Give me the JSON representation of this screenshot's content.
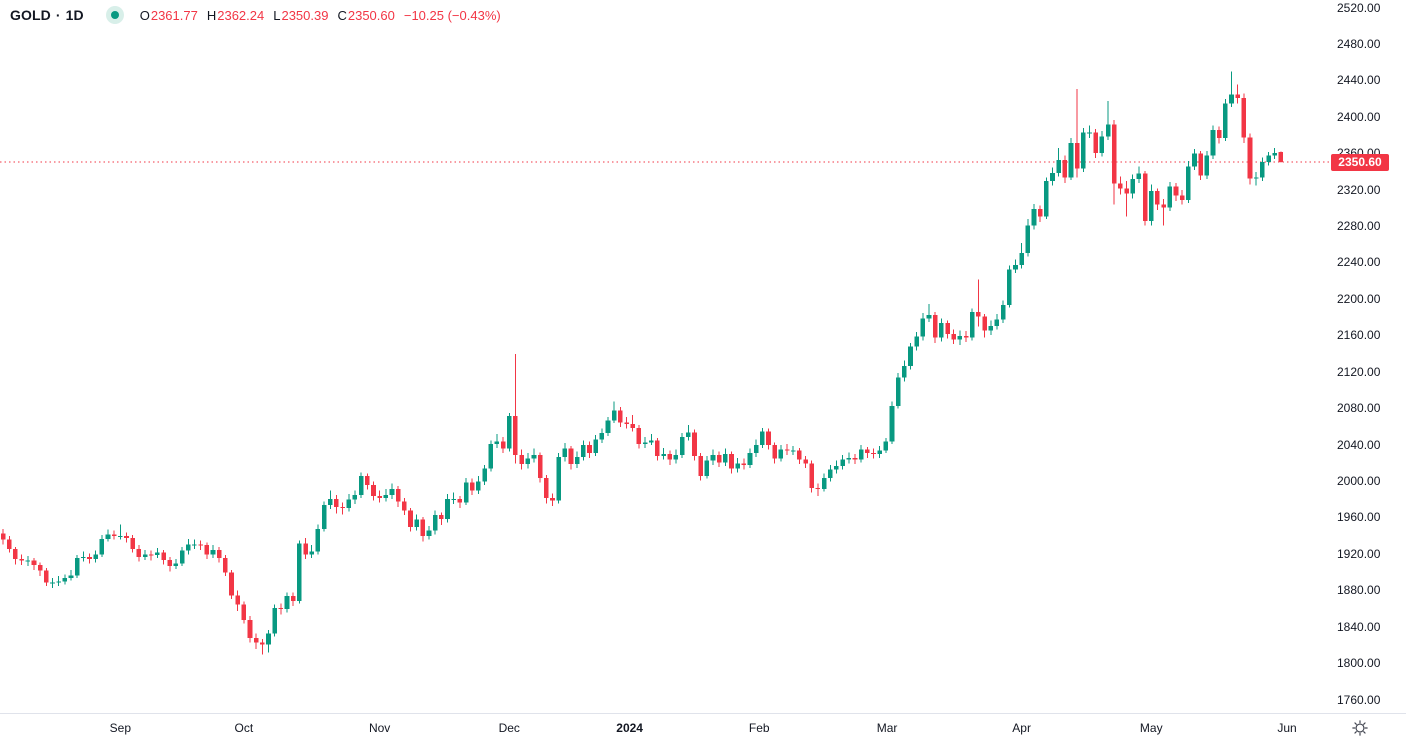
{
  "legend": {
    "symbol": "GOLD",
    "separator": "·",
    "interval": "1D",
    "ohlc": {
      "o_label": "O",
      "o": "2361.77",
      "h_label": "H",
      "h": "2362.24",
      "l_label": "L",
      "l": "2350.39",
      "c_label": "C",
      "c": "2350.60"
    },
    "change": "−10.25 (−0.43%)"
  },
  "price_label": "2350.60",
  "colors": {
    "up": "#089981",
    "down": "#f23645",
    "accent_red": "#f23645",
    "text": "#131722",
    "axis_line": "#e0e3eb",
    "status_dot": "#089981",
    "status_ring": "#d8efe9"
  },
  "chart_data": {
    "type": "candlestick",
    "title": "GOLD · 1D",
    "symbol": "GOLD",
    "interval": "1D",
    "legend_position": "top-left",
    "grid": false,
    "last_price": 2350.6,
    "last_candle": {
      "open": 2361.77,
      "high": 2362.24,
      "low": 2350.39,
      "close": 2350.6,
      "change": -10.25,
      "change_pct": -0.43
    },
    "price_axis": {
      "min": 1760,
      "max": 2520,
      "tick_step": 40,
      "side": "right",
      "ticks": [
        2520,
        2480,
        2440,
        2400,
        2360,
        2320,
        2280,
        2240,
        2200,
        2160,
        2120,
        2080,
        2040,
        2000,
        1960,
        1920,
        1880,
        1840,
        1800,
        1760
      ]
    },
    "time_ticks": [
      {
        "label": "Sep",
        "index": 19
      },
      {
        "label": "Oct",
        "index": 39
      },
      {
        "label": "Nov",
        "index": 61
      },
      {
        "label": "Dec",
        "index": 82
      },
      {
        "label": "2024",
        "index": 101.5,
        "bold": true
      },
      {
        "label": "Feb",
        "index": 122.5
      },
      {
        "label": "Mar",
        "index": 143.2
      },
      {
        "label": "Apr",
        "index": 165
      },
      {
        "label": "May",
        "index": 186
      },
      {
        "label": "Jun",
        "index": 208
      }
    ],
    "candles_format": [
      "open",
      "high",
      "low",
      "close"
    ],
    "candles": [
      [
        1943,
        1948,
        1931,
        1936
      ],
      [
        1936,
        1940,
        1922,
        1926
      ],
      [
        1926,
        1928,
        1909,
        1915
      ],
      [
        1915,
        1920,
        1908,
        1913
      ],
      [
        1913,
        1918,
        1907,
        1913
      ],
      [
        1913,
        1916,
        1903,
        1908
      ],
      [
        1908,
        1911,
        1896,
        1902
      ],
      [
        1902,
        1905,
        1885,
        1889
      ],
      [
        1889,
        1894,
        1883,
        1889
      ],
      [
        1889,
        1896,
        1885,
        1890
      ],
      [
        1890,
        1898,
        1887,
        1894
      ],
      [
        1894,
        1903,
        1891,
        1897
      ],
      [
        1897,
        1919,
        1894,
        1916
      ],
      [
        1916,
        1923,
        1912,
        1917
      ],
      [
        1917,
        1921,
        1910,
        1915
      ],
      [
        1915,
        1924,
        1911,
        1920
      ],
      [
        1920,
        1941,
        1917,
        1937
      ],
      [
        1937,
        1947,
        1934,
        1942
      ],
      [
        1942,
        1946,
        1936,
        1940
      ],
      [
        1940,
        1953,
        1936,
        1940
      ],
      [
        1940,
        1944,
        1933,
        1938
      ],
      [
        1938,
        1941,
        1922,
        1926
      ],
      [
        1926,
        1930,
        1912,
        1917
      ],
      [
        1917,
        1925,
        1914,
        1920
      ],
      [
        1920,
        1924,
        1913,
        1919
      ],
      [
        1919,
        1927,
        1916,
        1922
      ],
      [
        1922,
        1925,
        1909,
        1914
      ],
      [
        1914,
        1917,
        1901,
        1907
      ],
      [
        1907,
        1915,
        1904,
        1910
      ],
      [
        1910,
        1928,
        1907,
        1924
      ],
      [
        1924,
        1937,
        1920,
        1931
      ],
      [
        1931,
        1936,
        1926,
        1931
      ],
      [
        1931,
        1935,
        1925,
        1930
      ],
      [
        1930,
        1933,
        1915,
        1920
      ],
      [
        1920,
        1930,
        1916,
        1925
      ],
      [
        1925,
        1928,
        1911,
        1916
      ],
      [
        1916,
        1919,
        1896,
        1900
      ],
      [
        1900,
        1903,
        1871,
        1875
      ],
      [
        1875,
        1880,
        1858,
        1865
      ],
      [
        1865,
        1868,
        1844,
        1848
      ],
      [
        1848,
        1852,
        1823,
        1828
      ],
      [
        1828,
        1833,
        1816,
        1823
      ],
      [
        1823,
        1827,
        1810,
        1821
      ],
      [
        1821,
        1837,
        1812,
        1833
      ],
      [
        1833,
        1865,
        1830,
        1861
      ],
      [
        1861,
        1866,
        1854,
        1860
      ],
      [
        1860,
        1878,
        1856,
        1874
      ],
      [
        1874,
        1878,
        1863,
        1869
      ],
      [
        1869,
        1935,
        1866,
        1932
      ],
      [
        1932,
        1938,
        1915,
        1920
      ],
      [
        1920,
        1930,
        1916,
        1923
      ],
      [
        1923,
        1953,
        1920,
        1948
      ],
      [
        1948,
        1978,
        1945,
        1974
      ],
      [
        1974,
        1990,
        1970,
        1981
      ],
      [
        1981,
        1985,
        1965,
        1972
      ],
      [
        1972,
        1977,
        1964,
        1971
      ],
      [
        1971,
        1986,
        1967,
        1980
      ],
      [
        1980,
        1990,
        1975,
        1985
      ],
      [
        1985,
        2010,
        1982,
        2006
      ],
      [
        2006,
        2009,
        1991,
        1996
      ],
      [
        1996,
        2000,
        1979,
        1984
      ],
      [
        1984,
        1990,
        1977,
        1982
      ],
      [
        1982,
        1992,
        1978,
        1985
      ],
      [
        1985,
        1998,
        1981,
        1992
      ],
      [
        1992,
        1995,
        1972,
        1978
      ],
      [
        1978,
        1982,
        1963,
        1968
      ],
      [
        1968,
        1971,
        1945,
        1950
      ],
      [
        1950,
        1964,
        1946,
        1958
      ],
      [
        1958,
        1961,
        1934,
        1940
      ],
      [
        1940,
        1951,
        1936,
        1946
      ],
      [
        1946,
        1968,
        1942,
        1963
      ],
      [
        1963,
        1966,
        1952,
        1959
      ],
      [
        1959,
        1986,
        1955,
        1981
      ],
      [
        1981,
        1988,
        1975,
        1981
      ],
      [
        1981,
        1984,
        1971,
        1977
      ],
      [
        1977,
        2004,
        1974,
        1999
      ],
      [
        1999,
        2003,
        1985,
        1990
      ],
      [
        1990,
        2006,
        1986,
        2000
      ],
      [
        2000,
        2018,
        1996,
        2014
      ],
      [
        2014,
        2045,
        2011,
        2041
      ],
      [
        2041,
        2052,
        2037,
        2044
      ],
      [
        2044,
        2049,
        2031,
        2036
      ],
      [
        2036,
        2075,
        2033,
        2072
      ],
      [
        2072,
        2140,
        2020,
        2029
      ],
      [
        2029,
        2035,
        2013,
        2019
      ],
      [
        2019,
        2031,
        2014,
        2025
      ],
      [
        2025,
        2036,
        2021,
        2029
      ],
      [
        2029,
        2032,
        1999,
        2004
      ],
      [
        2004,
        2007,
        1976,
        1982
      ],
      [
        1982,
        1987,
        1973,
        1979
      ],
      [
        1979,
        2031,
        1976,
        2027
      ],
      [
        2027,
        2042,
        2022,
        2036
      ],
      [
        2036,
        2039,
        2013,
        2019
      ],
      [
        2019,
        2033,
        2015,
        2027
      ],
      [
        2027,
        2045,
        2023,
        2040
      ],
      [
        2040,
        2044,
        2026,
        2031
      ],
      [
        2031,
        2051,
        2028,
        2046
      ],
      [
        2046,
        2058,
        2042,
        2053
      ],
      [
        2053,
        2071,
        2050,
        2067
      ],
      [
        2067,
        2088,
        2064,
        2078
      ],
      [
        2078,
        2082,
        2060,
        2065
      ],
      [
        2065,
        2071,
        2058,
        2063
      ],
      [
        2063,
        2073,
        2055,
        2059
      ],
      [
        2059,
        2062,
        2036,
        2041
      ],
      [
        2041,
        2049,
        2037,
        2043
      ],
      [
        2043,
        2052,
        2040,
        2045
      ],
      [
        2045,
        2048,
        2023,
        2028
      ],
      [
        2028,
        2037,
        2024,
        2030
      ],
      [
        2030,
        2034,
        2018,
        2024
      ],
      [
        2024,
        2035,
        2020,
        2029
      ],
      [
        2029,
        2053,
        2026,
        2049
      ],
      [
        2049,
        2062,
        2045,
        2054
      ],
      [
        2054,
        2057,
        2023,
        2028
      ],
      [
        2028,
        2031,
        2001,
        2006
      ],
      [
        2006,
        2028,
        2003,
        2023
      ],
      [
        2023,
        2035,
        2018,
        2029
      ],
      [
        2029,
        2033,
        2016,
        2021
      ],
      [
        2021,
        2036,
        2017,
        2030
      ],
      [
        2030,
        2033,
        2009,
        2014
      ],
      [
        2014,
        2026,
        2010,
        2020
      ],
      [
        2020,
        2025,
        2013,
        2018
      ],
      [
        2018,
        2036,
        2015,
        2031
      ],
      [
        2031,
        2046,
        2027,
        2040
      ],
      [
        2040,
        2059,
        2037,
        2055
      ],
      [
        2055,
        2058,
        2035,
        2040
      ],
      [
        2040,
        2043,
        2020,
        2025
      ],
      [
        2025,
        2040,
        2022,
        2035
      ],
      [
        2035,
        2041,
        2029,
        2034
      ],
      [
        2034,
        2039,
        2029,
        2034
      ],
      [
        2034,
        2037,
        2019,
        2024
      ],
      [
        2024,
        2028,
        2015,
        2020
      ],
      [
        2020,
        2023,
        1988,
        1993
      ],
      [
        1993,
        1998,
        1984,
        1992
      ],
      [
        1992,
        2009,
        1989,
        2004
      ],
      [
        2004,
        2018,
        2000,
        2013
      ],
      [
        2013,
        2023,
        2009,
        2017
      ],
      [
        2017,
        2029,
        2013,
        2024
      ],
      [
        2024,
        2032,
        2020,
        2026
      ],
      [
        2026,
        2030,
        2019,
        2024
      ],
      [
        2024,
        2040,
        2021,
        2035
      ],
      [
        2035,
        2038,
        2026,
        2031
      ],
      [
        2031,
        2036,
        2025,
        2030
      ],
      [
        2030,
        2039,
        2026,
        2034
      ],
      [
        2034,
        2048,
        2031,
        2044
      ],
      [
        2044,
        2088,
        2041,
        2083
      ],
      [
        2083,
        2119,
        2080,
        2114
      ],
      [
        2114,
        2133,
        2110,
        2127
      ],
      [
        2127,
        2152,
        2123,
        2148
      ],
      [
        2148,
        2164,
        2144,
        2159
      ],
      [
        2159,
        2185,
        2155,
        2179
      ],
      [
        2179,
        2195,
        2175,
        2183
      ],
      [
        2183,
        2186,
        2152,
        2158
      ],
      [
        2158,
        2179,
        2154,
        2174
      ],
      [
        2174,
        2177,
        2157,
        2162
      ],
      [
        2162,
        2167,
        2151,
        2156
      ],
      [
        2156,
        2166,
        2150,
        2160
      ],
      [
        2160,
        2165,
        2153,
        2158
      ],
      [
        2158,
        2190,
        2155,
        2186
      ],
      [
        2186,
        2222,
        2170,
        2181
      ],
      [
        2181,
        2184,
        2158,
        2166
      ],
      [
        2166,
        2177,
        2161,
        2171
      ],
      [
        2171,
        2184,
        2167,
        2178
      ],
      [
        2178,
        2199,
        2174,
        2194
      ],
      [
        2194,
        2237,
        2191,
        2233
      ],
      [
        2233,
        2244,
        2229,
        2238
      ],
      [
        2238,
        2262,
        2234,
        2251
      ],
      [
        2251,
        2288,
        2247,
        2281
      ],
      [
        2281,
        2305,
        2277,
        2299
      ],
      [
        2299,
        2303,
        2285,
        2291
      ],
      [
        2291,
        2334,
        2288,
        2330
      ],
      [
        2330,
        2345,
        2325,
        2339
      ],
      [
        2339,
        2366,
        2335,
        2353
      ],
      [
        2353,
        2358,
        2328,
        2334
      ],
      [
        2334,
        2377,
        2331,
        2372
      ],
      [
        2372,
        2431,
        2334,
        2344
      ],
      [
        2344,
        2388,
        2340,
        2383
      ],
      [
        2383,
        2391,
        2377,
        2383
      ],
      [
        2383,
        2387,
        2355,
        2361
      ],
      [
        2361,
        2385,
        2357,
        2379
      ],
      [
        2379,
        2418,
        2375,
        2392
      ],
      [
        2392,
        2397,
        2304,
        2327
      ],
      [
        2327,
        2335,
        2315,
        2322
      ],
      [
        2322,
        2330,
        2291,
        2316
      ],
      [
        2316,
        2337,
        2311,
        2332
      ],
      [
        2332,
        2346,
        2328,
        2338
      ],
      [
        2338,
        2341,
        2281,
        2286
      ],
      [
        2286,
        2326,
        2281,
        2319
      ],
      [
        2319,
        2322,
        2298,
        2304
      ],
      [
        2304,
        2310,
        2281,
        2301
      ],
      [
        2301,
        2329,
        2297,
        2324
      ],
      [
        2324,
        2328,
        2308,
        2314
      ],
      [
        2314,
        2320,
        2304,
        2309
      ],
      [
        2309,
        2352,
        2306,
        2346
      ],
      [
        2346,
        2365,
        2342,
        2360
      ],
      [
        2360,
        2363,
        2331,
        2336
      ],
      [
        2336,
        2363,
        2332,
        2358
      ],
      [
        2358,
        2391,
        2354,
        2386
      ],
      [
        2386,
        2390,
        2371,
        2377
      ],
      [
        2377,
        2420,
        2374,
        2415
      ],
      [
        2415,
        2450,
        2411,
        2425
      ],
      [
        2425,
        2436,
        2415,
        2421
      ],
      [
        2421,
        2426,
        2372,
        2378
      ],
      [
        2378,
        2382,
        2326,
        2333
      ],
      [
        2333,
        2340,
        2325,
        2334
      ],
      [
        2334,
        2356,
        2330,
        2351
      ],
      [
        2351,
        2362,
        2347,
        2358
      ],
      [
        2358,
        2366,
        2354,
        2360.85
      ],
      [
        2361.77,
        2362.24,
        2350.39,
        2350.6
      ]
    ]
  }
}
